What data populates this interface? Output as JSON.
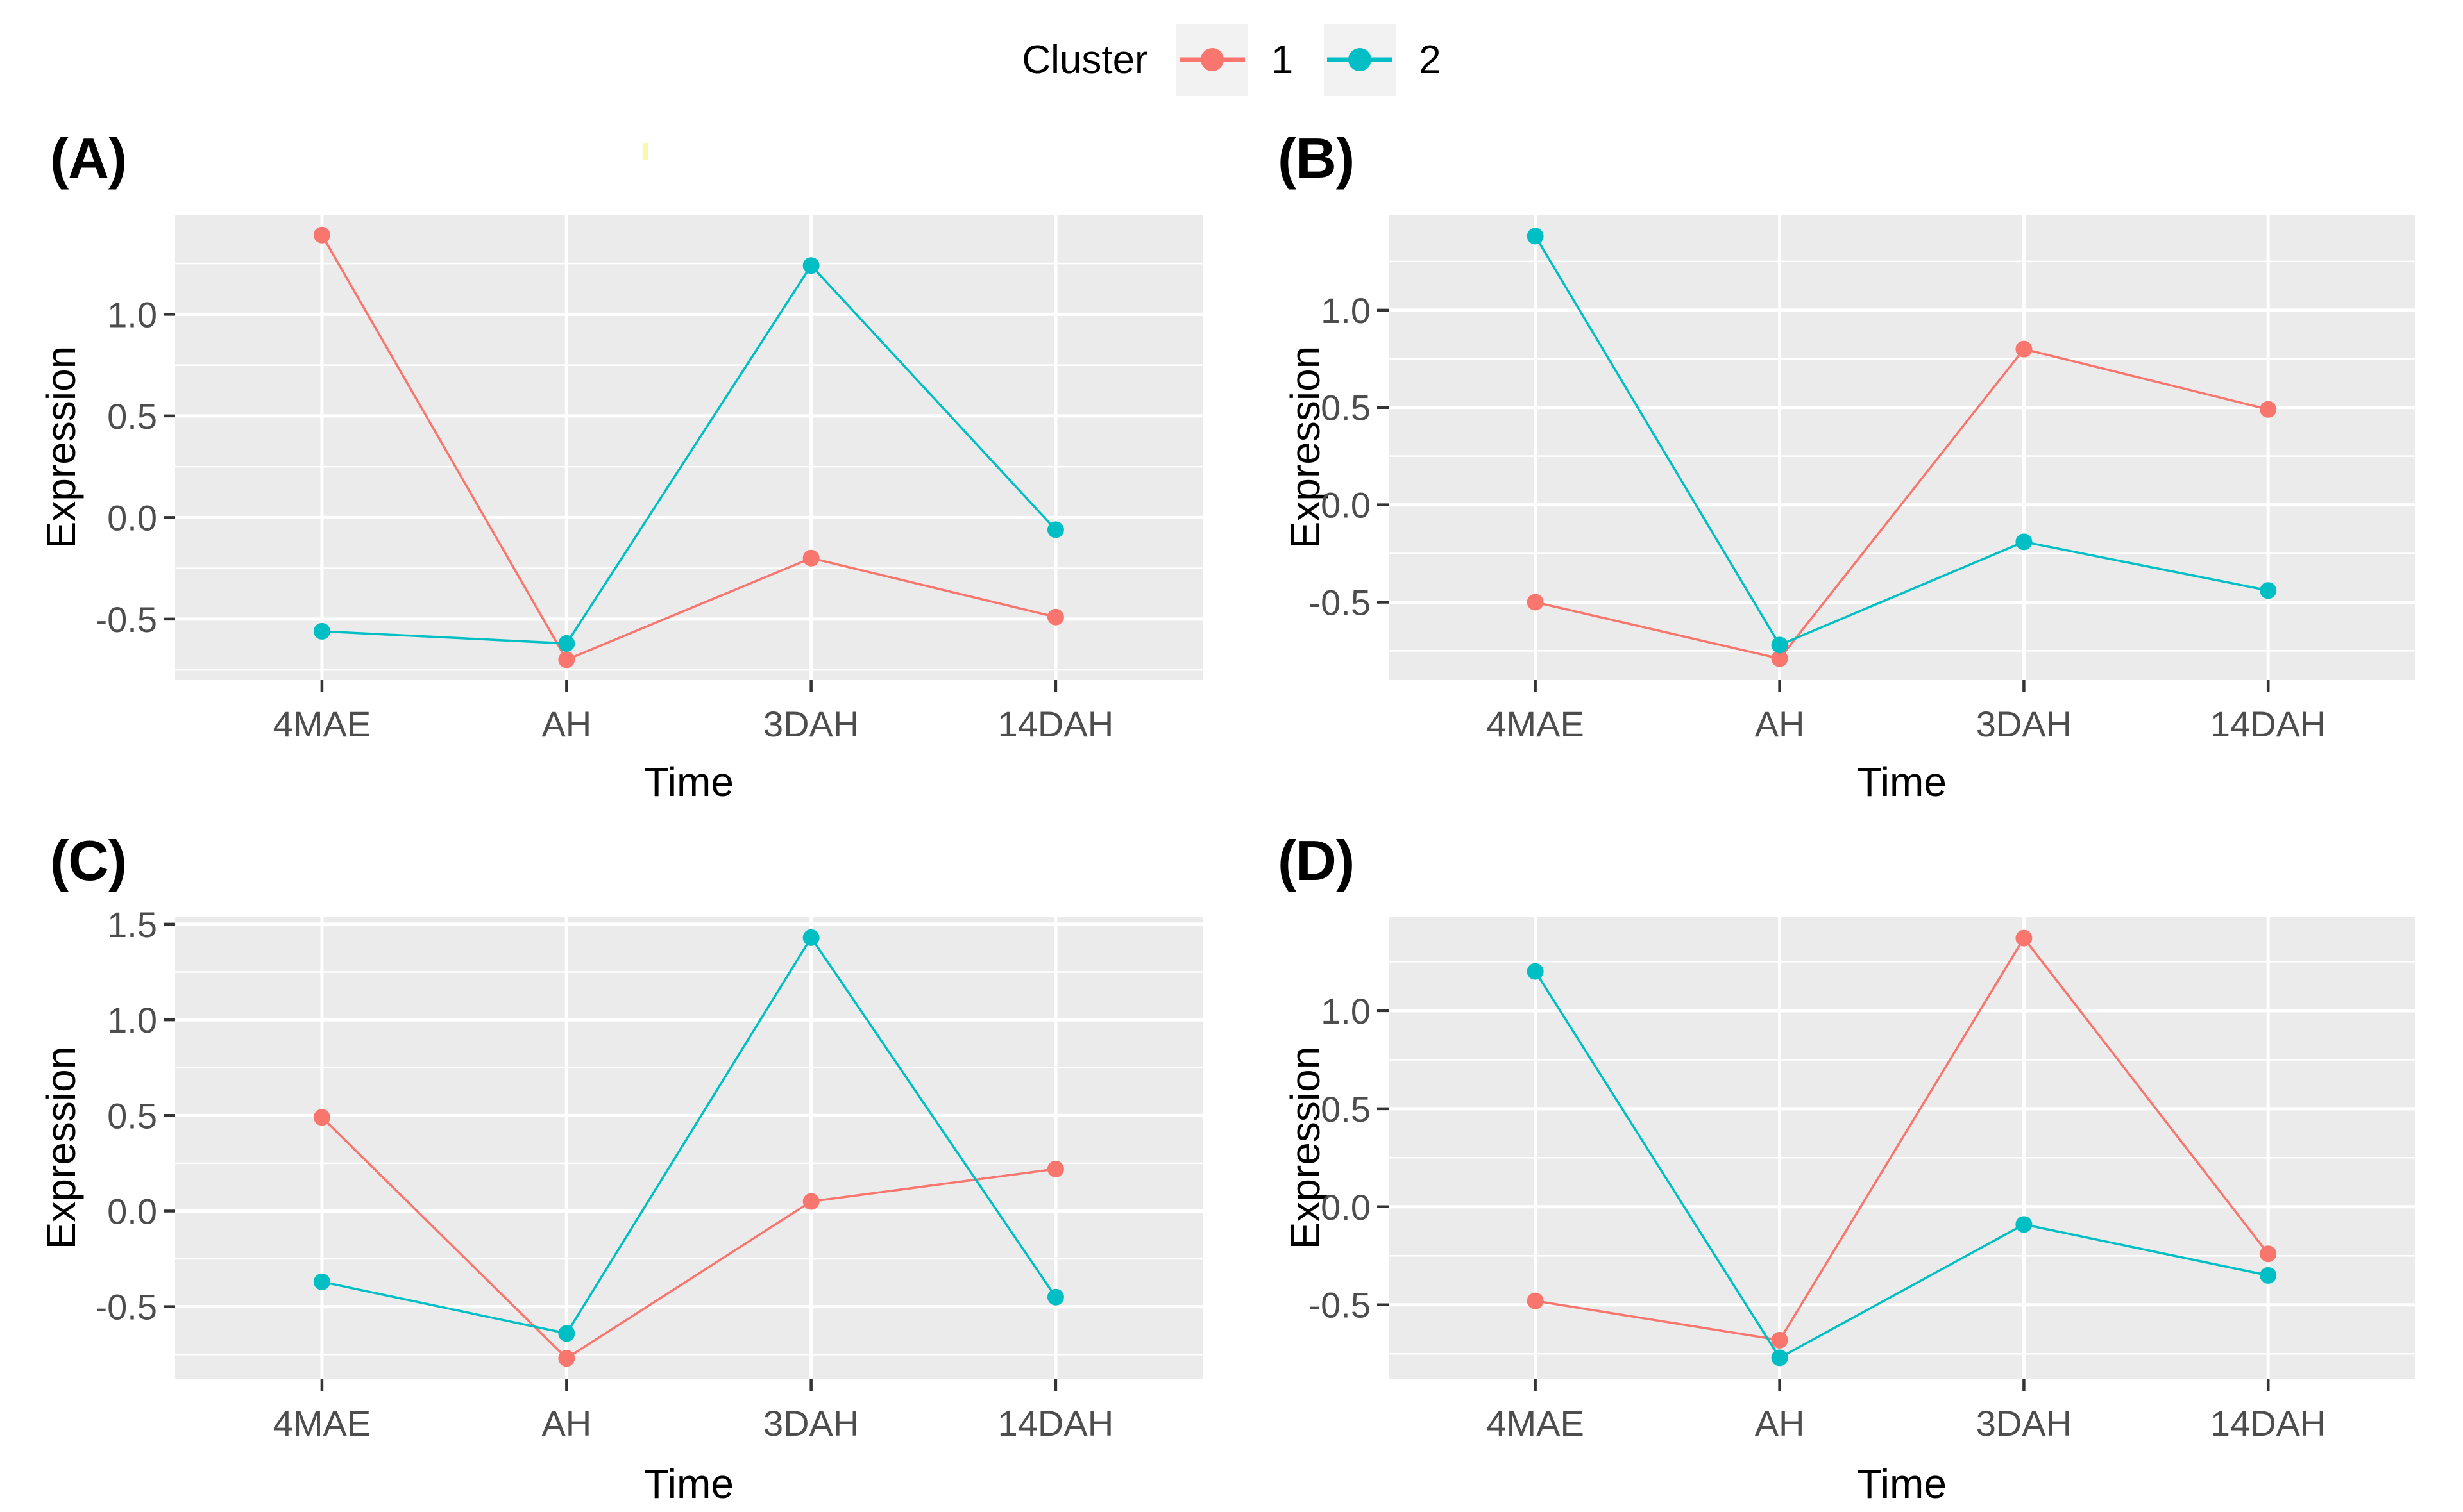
{
  "legend": {
    "title": "Cluster",
    "key_fill": "#F2F2F2",
    "entries": [
      {
        "label": "1",
        "color": "#F8766D"
      },
      {
        "label": "2",
        "color": "#00BFC4"
      }
    ],
    "position": "top-center"
  },
  "artifact_mark": {
    "color": "#FBF7AC"
  },
  "theme": {
    "panel_background": "#EBEBEB",
    "grid_color": "#FFFFFF",
    "tick_label_color": "#4D4D4D",
    "tick_mark_color": "#333333",
    "axis_title_color": "#000000"
  },
  "chart_data": [
    {
      "type": "line",
      "panel_label": "(A)",
      "categories": [
        "4MAE",
        "AH",
        "3DAH",
        "14DAH"
      ],
      "series": [
        {
          "name": "1",
          "color": "#F8766D",
          "values": [
            1.39,
            -0.7,
            -0.2,
            -0.49
          ]
        },
        {
          "name": "2",
          "color": "#00BFC4",
          "values": [
            -0.56,
            -0.62,
            1.24,
            -0.06
          ]
        }
      ],
      "xlabel": "Time",
      "ylabel": "Expression",
      "ylim": [
        -0.8,
        1.49
      ],
      "yticks": [
        1.0,
        0.5,
        0.0,
        -0.5
      ],
      "grid": "white major and minor gridlines on gray panel",
      "legend_position": "top"
    },
    {
      "type": "line",
      "panel_label": "(B)",
      "categories": [
        "4MAE",
        "AH",
        "3DAH",
        "14DAH"
      ],
      "series": [
        {
          "name": "1",
          "color": "#F8766D",
          "values": [
            -0.5,
            -0.79,
            0.8,
            0.49
          ]
        },
        {
          "name": "2",
          "color": "#00BFC4",
          "values": [
            1.38,
            -0.72,
            -0.19,
            -0.44
          ]
        }
      ],
      "xlabel": "Time",
      "ylabel": "Expression",
      "ylim": [
        -0.9,
        1.49
      ],
      "yticks": [
        1.0,
        0.5,
        0.0,
        -0.5
      ],
      "grid": "white major and minor gridlines on gray panel",
      "legend_position": "top"
    },
    {
      "type": "line",
      "panel_label": "(C)",
      "categories": [
        "4MAE",
        "AH",
        "3DAH",
        "14DAH"
      ],
      "series": [
        {
          "name": "1",
          "color": "#F8766D",
          "values": [
            0.49,
            -0.77,
            0.05,
            0.22
          ]
        },
        {
          "name": "2",
          "color": "#00BFC4",
          "values": [
            -0.37,
            -0.64,
            1.43,
            -0.45
          ]
        }
      ],
      "xlabel": "Time",
      "ylabel": "Expression",
      "ylim": [
        -0.88,
        1.54
      ],
      "yticks": [
        1.5,
        1.0,
        0.5,
        0.0,
        -0.5
      ],
      "grid": "white major and minor gridlines on gray panel",
      "legend_position": "top"
    },
    {
      "type": "line",
      "panel_label": "(D)",
      "categories": [
        "4MAE",
        "AH",
        "3DAH",
        "14DAH"
      ],
      "series": [
        {
          "name": "1",
          "color": "#F8766D",
          "values": [
            -0.48,
            -0.68,
            1.37,
            -0.24
          ]
        },
        {
          "name": "2",
          "color": "#00BFC4",
          "values": [
            1.2,
            -0.77,
            -0.09,
            -0.35
          ]
        }
      ],
      "xlabel": "Time",
      "ylabel": "Expression",
      "ylim": [
        -0.88,
        1.48
      ],
      "yticks": [
        1.0,
        0.5,
        0.0,
        -0.5
      ],
      "grid": "white major and minor gridlines on gray panel",
      "legend_position": "top"
    }
  ]
}
